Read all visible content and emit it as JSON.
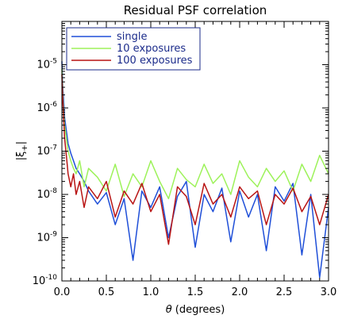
{
  "chart_data": {
    "type": "line",
    "title": "Residual PSF correlation",
    "xlabel": "θ (degrees)",
    "ylabel": "|ξ+|",
    "x_range": [
      0.0,
      3.0
    ],
    "y_range": [
      1e-10,
      0.0001
    ],
    "y_scale": "log",
    "x_ticks": [
      "0.0",
      "0.5",
      "1.0",
      "1.5",
      "2.0",
      "2.5",
      "3.0"
    ],
    "y_ticks": [
      {
        "base": "10",
        "exp": "-10"
      },
      {
        "base": "10",
        "exp": "-9"
      },
      {
        "base": "10",
        "exp": "-8"
      },
      {
        "base": "10",
        "exp": "-7"
      },
      {
        "base": "10",
        "exp": "-6"
      },
      {
        "base": "10",
        "exp": "-5"
      }
    ],
    "legend_position": "top-left",
    "series": [
      {
        "name": "single",
        "color": "#1f4fd8",
        "x": [
          0.0,
          0.01,
          0.02,
          0.03,
          0.05,
          0.07,
          0.1,
          0.13,
          0.16,
          0.2,
          0.25,
          0.3,
          0.4,
          0.5,
          0.6,
          0.7,
          0.8,
          0.9,
          1.0,
          1.1,
          1.2,
          1.3,
          1.4,
          1.5,
          1.6,
          1.7,
          1.8,
          1.9,
          2.0,
          2.1,
          2.2,
          2.3,
          2.4,
          2.5,
          2.6,
          2.7,
          2.8,
          2.9,
          3.0
        ],
        "y": [
          1.2e-05,
          3e-06,
          1.5e-06,
          6e-07,
          3e-07,
          1.5e-07,
          9e-08,
          6e-08,
          4e-08,
          3e-08,
          2e-08,
          1.2e-08,
          6e-09,
          1.1e-08,
          2e-09,
          8e-09,
          3e-10,
          1.2e-08,
          5e-09,
          1.5e-08,
          1e-09,
          9e-09,
          2e-08,
          6e-10,
          1e-08,
          4e-09,
          1.4e-08,
          8e-10,
          1.2e-08,
          3e-09,
          1e-08,
          5e-10,
          1.5e-08,
          7e-09,
          1.8e-08,
          4e-10,
          1e-08,
          1.2e-10,
          5e-09
        ]
      },
      {
        "name": "10 exposures",
        "color": "#9df25a",
        "x": [
          0.0,
          0.01,
          0.02,
          0.03,
          0.05,
          0.07,
          0.1,
          0.13,
          0.16,
          0.2,
          0.25,
          0.3,
          0.4,
          0.5,
          0.6,
          0.7,
          0.8,
          0.9,
          1.0,
          1.1,
          1.2,
          1.3,
          1.4,
          1.5,
          1.6,
          1.7,
          1.8,
          1.9,
          2.0,
          2.1,
          2.2,
          2.3,
          2.4,
          2.5,
          2.6,
          2.7,
          2.8,
          2.9,
          3.0
        ],
        "y": [
          8e-06,
          2e-06,
          8e-07,
          4e-07,
          2e-07,
          1e-07,
          6e-08,
          4e-08,
          3e-08,
          6e-08,
          1.5e-08,
          4e-08,
          2.5e-08,
          1.2e-08,
          5e-08,
          9e-09,
          3e-08,
          1.5e-08,
          6e-08,
          2e-08,
          8e-09,
          4e-08,
          2.2e-08,
          1.5e-08,
          5e-08,
          1.8e-08,
          3e-08,
          1e-08,
          6e-08,
          2.5e-08,
          1.5e-08,
          4e-08,
          2e-08,
          3.5e-08,
          1.2e-08,
          5e-08,
          2e-08,
          8e-08,
          3e-08
        ]
      },
      {
        "name": "100 exposures",
        "color": "#b81414",
        "x": [
          0.0,
          0.01,
          0.02,
          0.03,
          0.05,
          0.07,
          0.1,
          0.13,
          0.16,
          0.2,
          0.25,
          0.3,
          0.4,
          0.5,
          0.6,
          0.7,
          0.8,
          0.9,
          1.0,
          1.1,
          1.2,
          1.3,
          1.4,
          1.5,
          1.6,
          1.7,
          1.8,
          1.9,
          2.0,
          2.1,
          2.2,
          2.3,
          2.4,
          2.5,
          2.6,
          2.7,
          2.8,
          2.9,
          3.0
        ],
        "y": [
          6e-06,
          1.5e-06,
          6e-07,
          2e-07,
          8e-08,
          3e-08,
          1.5e-08,
          3e-08,
          1e-08,
          2e-08,
          5e-09,
          1.5e-08,
          8e-09,
          2e-08,
          3e-09,
          1.2e-08,
          6e-09,
          1.8e-08,
          4e-09,
          1e-08,
          7e-10,
          1.5e-08,
          9e-09,
          2e-09,
          1.8e-08,
          6e-09,
          1e-08,
          3e-09,
          1.5e-08,
          8e-09,
          1.2e-08,
          2e-09,
          1e-08,
          6e-09,
          1.4e-08,
          4e-09,
          9e-09,
          2e-09,
          1e-08
        ]
      }
    ]
  }
}
